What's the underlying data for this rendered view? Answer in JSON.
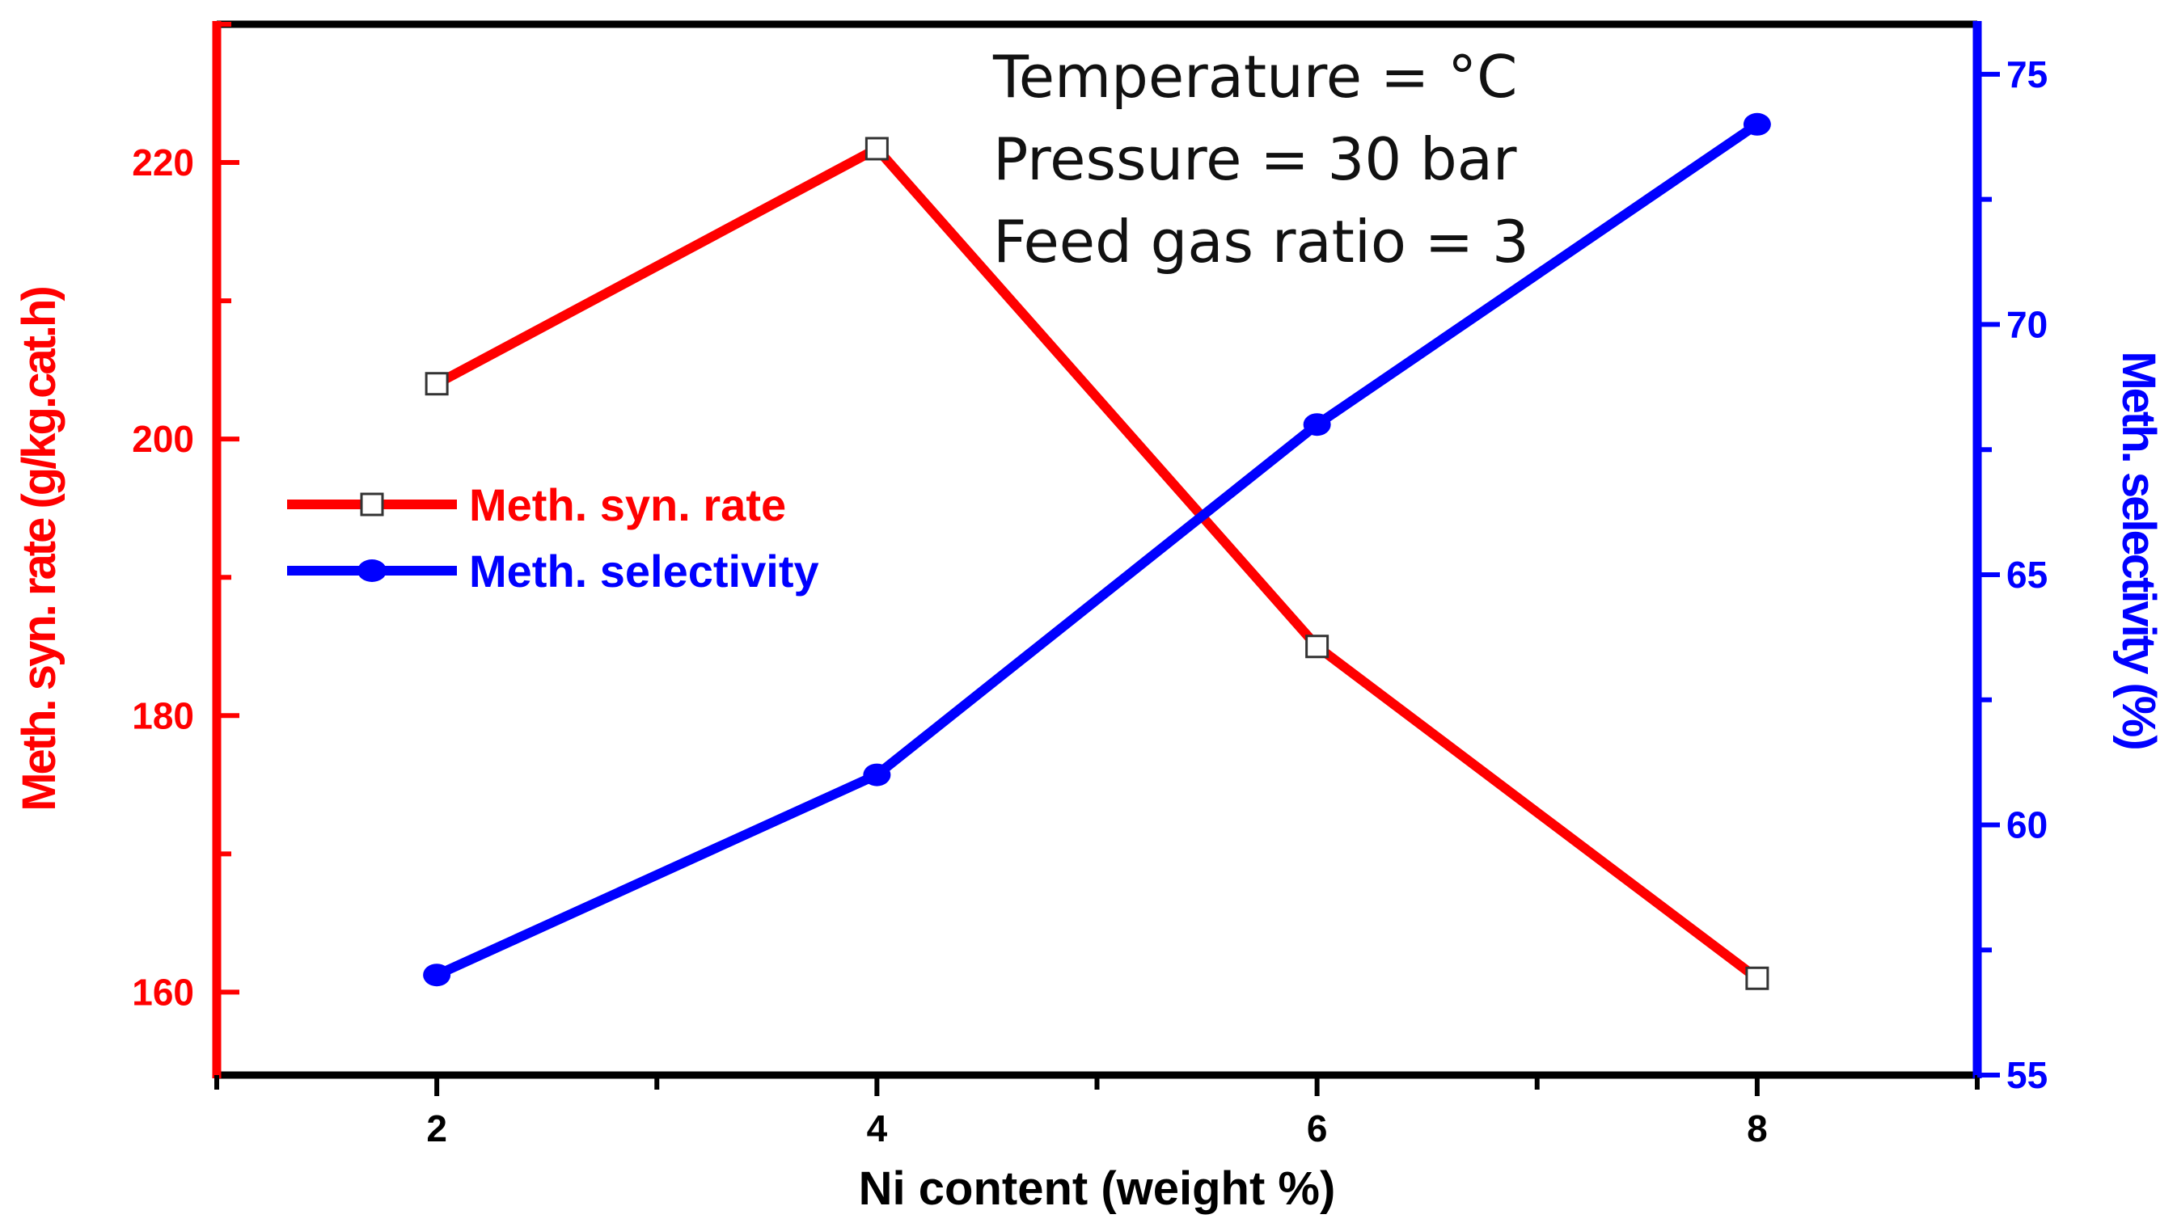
{
  "chart_data": {
    "type": "line",
    "title": "",
    "xlabel": "Ni content (weight %)",
    "xlim": [
      1,
      9
    ],
    "x": [
      2,
      4,
      6,
      8
    ],
    "xticks": [
      2,
      4,
      6,
      8
    ],
    "xtick_labels": [
      "2",
      "4",
      "6",
      "8"
    ],
    "y_left": {
      "label": "Meth. syn. rate (g/kg.cat.h)",
      "lim": [
        154,
        230
      ],
      "ticks": [
        160,
        180,
        200,
        220
      ],
      "tick_labels": [
        "160",
        "180",
        "200",
        "220"
      ],
      "color": "#ff0000"
    },
    "y_right": {
      "label": "Meth. selectivity (%)",
      "lim": [
        55,
        76
      ],
      "ticks": [
        55,
        60,
        65,
        70,
        75
      ],
      "tick_labels": [
        "55",
        "60",
        "65",
        "70",
        "75"
      ],
      "color": "#0000ff"
    },
    "series": [
      {
        "name": "Meth. syn. rate",
        "axis": "left",
        "color": "#ff0000",
        "marker": "open-square",
        "values": [
          204,
          221,
          185,
          161
        ]
      },
      {
        "name": "Meth. selectivity",
        "axis": "right",
        "color": "#0000ff",
        "marker": "filled-circle",
        "values": [
          57,
          61,
          68,
          74
        ]
      }
    ],
    "annotations": [
      "Temperature = °C",
      "Pressure = 30 bar",
      "Feed gas ratio = 3"
    ],
    "legend_position": "center-left",
    "grid": false
  }
}
